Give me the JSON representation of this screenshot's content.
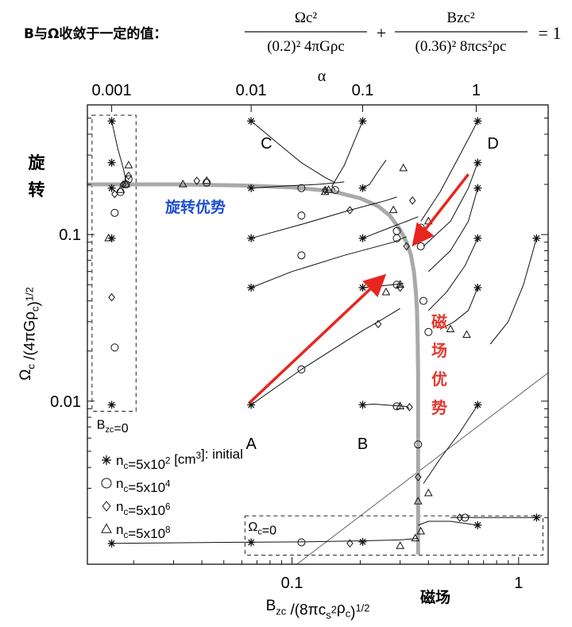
{
  "header": {
    "caption": "B与Ω收敛于一定的值：",
    "eq_term1_num": "Ωc²",
    "eq_term1_den": "(0.2)² 4πGρc",
    "eq_plus": "+",
    "eq_term2_num": "Bzc²",
    "eq_term2_den": "(0.36)² 8πcs²ρc",
    "eq_rhs": "= 1"
  },
  "annotations": {
    "rotation_side_label": "旋转",
    "rotation_dominant": "旋转优势",
    "magnetic_dominant": "磁场优势",
    "magnetic_axis_label": "磁场",
    "colors": {
      "blue_text": "#1f4fd0",
      "red_text": "#e03a2f",
      "red_arrow": "#e8261f",
      "gray_curve": "#a9a9a9"
    }
  },
  "chart_data": {
    "type": "scatter",
    "title": "",
    "xlabel": "Bzc /(8πcs²ρc)^1/2",
    "ylabel": "Ωc /(4πGρc)^1/2",
    "top_axis_label": "α",
    "xscale": "log",
    "yscale": "log",
    "xlim": [
      0.0125,
      1.35
    ],
    "ylim": [
      0.00105,
      0.6
    ],
    "x_ticks": [
      {
        "value": 0.1,
        "label": "0.1"
      },
      {
        "value": 1,
        "label": "1"
      }
    ],
    "y_ticks": [
      {
        "value": 0.01,
        "label": "0.01"
      },
      {
        "value": 0.1,
        "label": "0.1"
      }
    ],
    "top_ticks": [
      {
        "x": 0.016,
        "label": "0.001"
      },
      {
        "x": 0.066,
        "label": "0.01"
      },
      {
        "x": 0.205,
        "label": "0.1"
      },
      {
        "x": 0.65,
        "label": "1"
      }
    ],
    "corner_labels": [
      {
        "x": 0.066,
        "y": 0.4,
        "label": "C"
      },
      {
        "x": 0.66,
        "y": 0.4,
        "label": "D"
      },
      {
        "x": 0.066,
        "y": 0.0075,
        "label": "A"
      },
      {
        "x": 0.205,
        "y": 0.0075,
        "label": "B"
      }
    ],
    "boxes": [
      {
        "x": [
          0.0131,
          0.0205
        ],
        "y": [
          0.0087,
          0.52
        ],
        "label": "Bzc=0"
      },
      {
        "x": [
          0.062,
          1.28
        ],
        "y": [
          0.00119,
          0.00205
        ],
        "label": "Ωc=0"
      }
    ],
    "legend": {
      "position": "bottom-left",
      "entries": [
        {
          "marker": "asterisk",
          "label": "nc=5x10² [cm³]: initial"
        },
        {
          "marker": "circle",
          "label": "nc=5x10⁴"
        },
        {
          "marker": "diamond",
          "label": "nc=5x10⁶"
        },
        {
          "marker": "triangle",
          "label": "nc=5x10⁸"
        }
      ]
    },
    "convergence_curve": {
      "name": "",
      "x": [
        0.0125,
        0.03,
        0.06,
        0.1,
        0.15,
        0.2,
        0.24,
        0.27,
        0.3,
        0.32,
        0.335,
        0.345,
        0.352,
        0.356,
        0.358,
        0.36,
        0.36
      ],
      "y": [
        0.2,
        0.2,
        0.197,
        0.192,
        0.182,
        0.165,
        0.148,
        0.13,
        0.107,
        0.09,
        0.075,
        0.06,
        0.045,
        0.035,
        0.025,
        0.015,
        0.0012
      ]
    },
    "diagonal_line": {
      "x": [
        0.105,
        1.35
      ],
      "y": [
        0.00105,
        0.0148
      ]
    },
    "arrows": [
      {
        "from": [
          0.065,
          0.0098
        ],
        "to": [
          0.25,
          0.055
        ]
      },
      {
        "from": [
          0.6,
          0.23
        ],
        "to": [
          0.35,
          0.09
        ]
      }
    ],
    "tracks": [
      {
        "x": [
          0.066,
          0.11,
          0.2,
          0.25,
          0.3
        ],
        "y": [
          0.0095,
          0.0155,
          0.026,
          0.031,
          0.036
        ]
      },
      {
        "x": [
          0.205,
          0.23,
          0.28,
          0.32,
          0.33
        ],
        "y": [
          0.0095,
          0.0096,
          0.0094,
          0.0093,
          0.009
        ]
      },
      {
        "x": [
          0.066,
          0.1,
          0.17,
          0.28,
          0.32
        ],
        "y": [
          0.048,
          0.06,
          0.075,
          0.09,
          0.097
        ]
      },
      {
        "x": [
          0.066,
          0.11,
          0.18,
          0.26,
          0.29
        ],
        "y": [
          0.095,
          0.115,
          0.14,
          0.16,
          0.168
        ]
      },
      {
        "x": [
          0.066,
          0.09,
          0.13,
          0.16,
          0.17
        ],
        "y": [
          0.19,
          0.195,
          0.2,
          0.205,
          0.207
        ]
      },
      {
        "x": [
          0.066,
          0.085,
          0.11,
          0.14,
          0.155
        ],
        "y": [
          0.48,
          0.36,
          0.27,
          0.22,
          0.205
        ]
      },
      {
        "x": [
          0.016,
          0.017,
          0.018,
          0.0185
        ],
        "y": [
          0.48,
          0.33,
          0.25,
          0.21
        ]
      },
      {
        "x": [
          0.205,
          0.24,
          0.28,
          0.31
        ],
        "y": [
          0.048,
          0.049,
          0.05,
          0.051
        ]
      },
      {
        "x": [
          0.205,
          0.27,
          0.32,
          0.36
        ],
        "y": [
          0.095,
          0.11,
          0.12,
          0.128
        ]
      },
      {
        "x": [
          0.205,
          0.22,
          0.24,
          0.26
        ],
        "y": [
          0.19,
          0.2,
          0.24,
          0.28
        ]
      },
      {
        "x": [
          0.205,
          0.17,
          0.15,
          0.155
        ],
        "y": [
          0.48,
          0.26,
          0.195,
          0.185
        ]
      },
      {
        "x": [
          0.66,
          0.55,
          0.45,
          0.37
        ],
        "y": [
          0.48,
          0.3,
          0.18,
          0.12
        ]
      },
      {
        "x": [
          0.66,
          0.6,
          0.5,
          0.38
        ],
        "y": [
          0.27,
          0.19,
          0.12,
          0.085
        ]
      },
      {
        "x": [
          0.66,
          0.6,
          0.5,
          0.4
        ],
        "y": [
          0.19,
          0.12,
          0.08,
          0.06
        ]
      },
      {
        "x": [
          0.66,
          0.58,
          0.48,
          0.4
        ],
        "y": [
          0.095,
          0.065,
          0.045,
          0.035
        ]
      },
      {
        "x": [
          0.66,
          0.6,
          0.52,
          0.45
        ],
        "y": [
          0.048,
          0.035,
          0.03,
          0.027
        ]
      },
      {
        "x": [
          0.66,
          0.55,
          0.45,
          0.38
        ],
        "y": [
          0.0095,
          0.0065,
          0.0045,
          0.0032
        ]
      },
      {
        "x": [
          1.2,
          1.05,
          0.9,
          0.75
        ],
        "y": [
          0.095,
          0.05,
          0.03,
          0.022
        ]
      },
      {
        "x": [
          0.016,
          0.05,
          0.11,
          0.2,
          0.3,
          0.36
        ],
        "y": [
          0.0014,
          0.00142,
          0.00143,
          0.00145,
          0.00147,
          0.0015
        ]
      },
      {
        "x": [
          0.66,
          0.5,
          0.4,
          0.36
        ],
        "y": [
          0.0018,
          0.0019,
          0.0019,
          0.0018
        ]
      },
      {
        "x": [
          1.2,
          0.9,
          0.7,
          0.55,
          0.5
        ],
        "y": [
          0.002,
          0.002,
          0.002,
          0.002,
          0.002
        ]
      }
    ],
    "series": [
      {
        "name": "nc=5x10² [cm³]: initial",
        "marker": "asterisk",
        "x": [
          0.016,
          0.016,
          0.016,
          0.016,
          0.016,
          0.066,
          0.066,
          0.066,
          0.066,
          0.066,
          0.066,
          0.205,
          0.205,
          0.205,
          0.205,
          0.205,
          0.205,
          0.66,
          0.66,
          0.66,
          0.66,
          0.66,
          0.66,
          1.2,
          1.2,
          0.66,
          0.016
        ],
        "y": [
          0.48,
          0.27,
          0.19,
          0.095,
          0.0095,
          0.48,
          0.19,
          0.095,
          0.048,
          0.0095,
          0.00142,
          0.48,
          0.19,
          0.095,
          0.048,
          0.0095,
          0.00143,
          0.48,
          0.27,
          0.19,
          0.095,
          0.048,
          0.0095,
          0.095,
          0.002,
          0.0018,
          0.0014
        ]
      },
      {
        "name": "nc=5x10⁴",
        "marker": "circle",
        "x": [
          0.0165,
          0.0165,
          0.0175,
          0.0185,
          0.019,
          0.042,
          0.11,
          0.11,
          0.11,
          0.11,
          0.11,
          0.155,
          0.29,
          0.29,
          0.29,
          0.29,
          0.37,
          0.37,
          0.38,
          0.4,
          0.58,
          0.36
        ],
        "y": [
          0.021,
          0.135,
          0.18,
          0.2,
          0.215,
          0.205,
          0.0155,
          0.075,
          0.13,
          0.19,
          0.00142,
          0.185,
          0.05,
          0.095,
          0.105,
          0.0093,
          0.11,
          0.085,
          0.04,
          0.026,
          0.002,
          0.0055
        ]
      },
      {
        "name": "nc=5x10⁶",
        "marker": "diamond",
        "x": [
          0.016,
          0.0165,
          0.018,
          0.019,
          0.038,
          0.14,
          0.18,
          0.18,
          0.24,
          0.3,
          0.32,
          0.34,
          0.33,
          0.36,
          0.55
        ],
        "y": [
          0.042,
          0.175,
          0.2,
          0.225,
          0.21,
          0.185,
          0.14,
          0.0014,
          0.029,
          0.048,
          0.085,
          0.16,
          0.0092,
          0.0035,
          0.002
        ]
      },
      {
        "name": "nc=5x10⁸",
        "marker": "triangle",
        "x": [
          0.0155,
          0.0175,
          0.0185,
          0.019,
          0.033,
          0.042,
          0.14,
          0.145,
          0.26,
          0.28,
          0.3,
          0.31,
          0.3,
          0.35,
          0.36,
          0.4,
          0.4,
          0.5,
          0.59,
          0.37,
          0.3
        ],
        "y": [
          0.095,
          0.185,
          0.2,
          0.26,
          0.2,
          0.21,
          0.18,
          0.185,
          0.045,
          0.14,
          0.05,
          0.25,
          0.0093,
          0.0015,
          0.0025,
          0.12,
          0.0028,
          0.027,
          0.025,
          0.00165,
          0.00135
        ]
      }
    ]
  }
}
